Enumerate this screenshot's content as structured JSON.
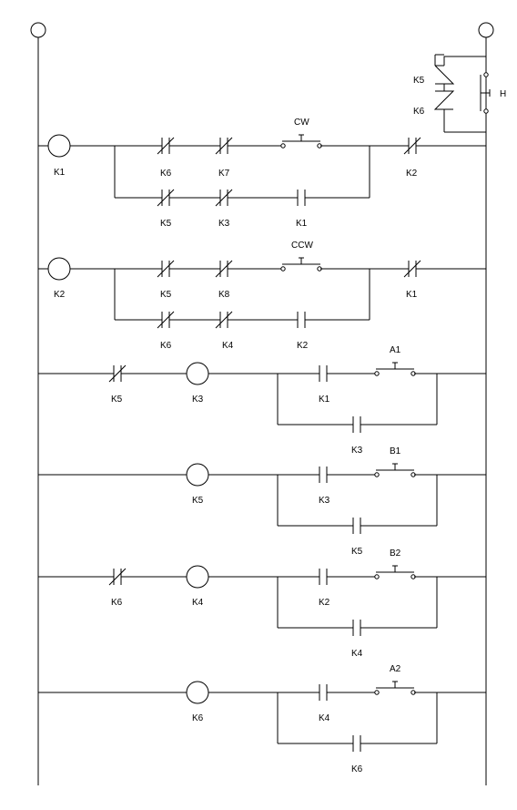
{
  "diagram": {
    "title": "",
    "rungs": [
      {
        "coil": "K1",
        "main_branch": [
          "K6",
          "K7",
          "CW"
        ],
        "parallel_branch": [
          "K5",
          "K3",
          "K1"
        ],
        "series": "K2"
      },
      {
        "coil": "K2",
        "main_branch": [
          "K5",
          "K8",
          "CCW"
        ],
        "parallel_branch": [
          "K6",
          "K4",
          "K2"
        ],
        "series": "K1"
      },
      {
        "nc_contact": "K5",
        "coil": "K3",
        "no_contact": "K1",
        "button": "A1",
        "seal": "K3"
      },
      {
        "coil": "K5",
        "no_contact": "K3",
        "button": "B1",
        "seal": "K5"
      },
      {
        "nc_contact": "K6",
        "coil": "K4",
        "no_contact": "K2",
        "button": "B2",
        "seal": "K4"
      },
      {
        "coil": "K6",
        "no_contact": "K4",
        "button": "A2",
        "seal": "K6"
      }
    ],
    "hold_circuit": {
      "contacts": [
        "K5",
        "K6"
      ],
      "button": "H"
    }
  }
}
